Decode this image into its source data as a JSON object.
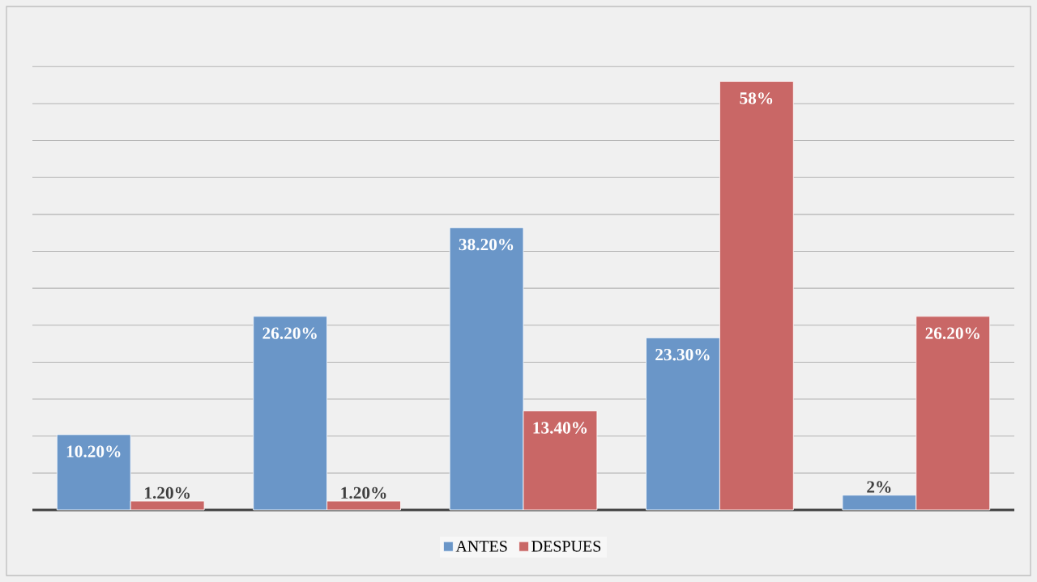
{
  "chart_data": {
    "type": "bar",
    "categories": [
      null,
      null,
      null,
      null,
      null
    ],
    "series": [
      {
        "name": "ANTES",
        "color": "#6a96c8",
        "values": [
          10.2,
          26.2,
          38.2,
          23.3,
          2
        ],
        "value_labels": [
          "10.20%",
          "26.20%",
          "38.20%",
          "23.30%",
          "2%"
        ]
      },
      {
        "name": "DESPUES",
        "color": "#c96766",
        "values": [
          1.2,
          1.2,
          13.4,
          58,
          26.2
        ],
        "value_labels": [
          "1.20%",
          "1.20%",
          "13.40%",
          "58%",
          "26.20%"
        ]
      }
    ],
    "grid": "y",
    "legend": "bottom",
    "tick_labels": false
  }
}
